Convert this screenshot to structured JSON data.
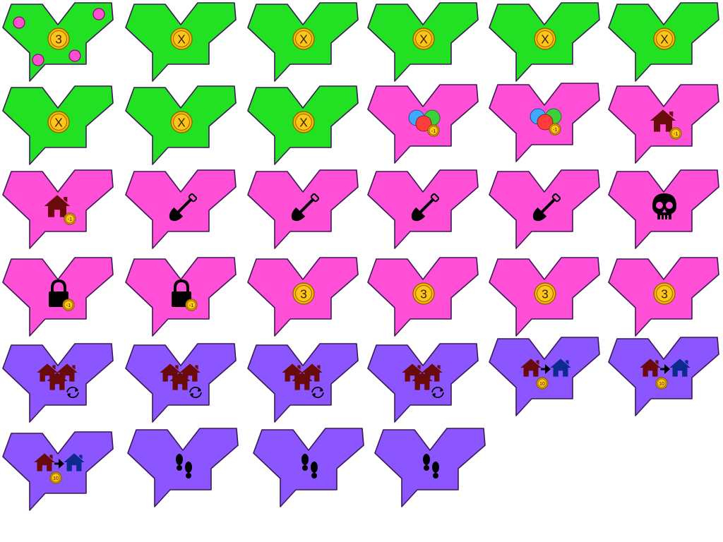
{
  "colors": {
    "green": "#22e022",
    "magenta": "#ff4fd6",
    "purple": "#8b55ff",
    "dark_red": "#6a0b0b",
    "navy": "#0d2a8f",
    "black": "#000000",
    "coin": "#f2b705",
    "dot": "#ff4fd0",
    "blue_circle": "#3fa9ff",
    "red_circle": "#ff3b3b",
    "green_circle": "#3ad13a"
  },
  "tiles": [
    {
      "color": "green",
      "icon": "coin-with-dots-icon",
      "coin_label": "3"
    },
    {
      "color": "green",
      "icon": "coin-x-icon",
      "coin_label": "X"
    },
    {
      "color": "green",
      "icon": "coin-x-icon",
      "coin_label": "X"
    },
    {
      "color": "green",
      "icon": "coin-x-icon",
      "coin_label": "X"
    },
    {
      "color": "green",
      "icon": "coin-x-icon",
      "coin_label": "X"
    },
    {
      "color": "green",
      "icon": "coin-x-icon",
      "coin_label": "X"
    },
    {
      "color": "green",
      "icon": "coin-x-icon",
      "coin_label": "X"
    },
    {
      "color": "green",
      "icon": "coin-x-icon",
      "coin_label": "X"
    },
    {
      "color": "green",
      "icon": "coin-x-icon",
      "coin_label": "X"
    },
    {
      "color": "magenta",
      "icon": "colored-circles-minus-one-icon",
      "coin_label": "-1"
    },
    {
      "color": "magenta",
      "icon": "colored-circles-minus-one-icon",
      "coin_label": "-1"
    },
    {
      "color": "magenta",
      "icon": "house-minus-one-icon",
      "coin_label": "-1"
    },
    {
      "color": "magenta",
      "icon": "house-minus-one-icon",
      "coin_label": "-1"
    },
    {
      "color": "magenta",
      "icon": "shovel-icon",
      "coin_label": ""
    },
    {
      "color": "magenta",
      "icon": "shovel-icon",
      "coin_label": ""
    },
    {
      "color": "magenta",
      "icon": "shovel-icon",
      "coin_label": ""
    },
    {
      "color": "magenta",
      "icon": "shovel-icon",
      "coin_label": ""
    },
    {
      "color": "magenta",
      "icon": "skull-icon",
      "coin_label": ""
    },
    {
      "color": "magenta",
      "icon": "lock-minus-one-icon",
      "coin_label": "-1"
    },
    {
      "color": "magenta",
      "icon": "lock-minus-one-icon",
      "coin_label": "-1"
    },
    {
      "color": "magenta",
      "icon": "coin-three-icon",
      "coin_label": "3"
    },
    {
      "color": "magenta",
      "icon": "coin-three-icon",
      "coin_label": "3"
    },
    {
      "color": "magenta",
      "icon": "coin-three-icon",
      "coin_label": "3"
    },
    {
      "color": "magenta",
      "icon": "coin-three-icon",
      "coin_label": "3"
    },
    {
      "color": "purple",
      "icon": "houses-swap-icon",
      "coin_label": ""
    },
    {
      "color": "purple",
      "icon": "houses-swap-icon",
      "coin_label": ""
    },
    {
      "color": "purple",
      "icon": "houses-swap-icon",
      "coin_label": ""
    },
    {
      "color": "purple",
      "icon": "houses-swap-icon",
      "coin_label": ""
    },
    {
      "color": "purple",
      "icon": "house-transfer-icon",
      "coin_label": "10"
    },
    {
      "color": "purple",
      "icon": "house-transfer-icon",
      "coin_label": "10"
    },
    {
      "color": "purple",
      "icon": "house-transfer-icon",
      "coin_label": "10"
    },
    {
      "color": "purple",
      "icon": "footprints-icon",
      "coin_label": ""
    },
    {
      "color": "purple",
      "icon": "footprints-icon",
      "coin_label": ""
    },
    {
      "color": "purple",
      "icon": "footprints-icon",
      "coin_label": ""
    }
  ]
}
